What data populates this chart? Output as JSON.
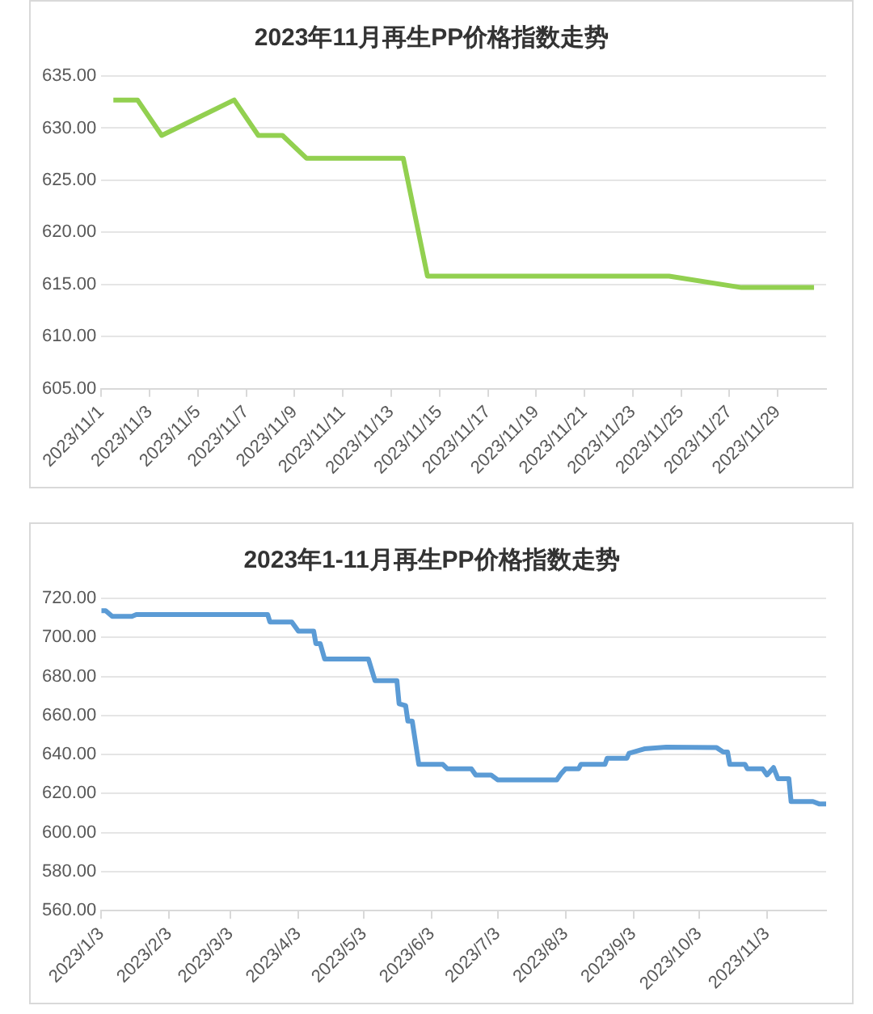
{
  "chart_data": [
    {
      "type": "line",
      "title": "2023年11月再生PP价格指数走势",
      "color": "#92d050",
      "grid": "y",
      "x": [
        "2023-11-01T12:00",
        "2023-11-02T12:00",
        "2023-11-03T12:00",
        "2023-11-06T12:00",
        "2023-11-07T12:00",
        "2023-11-08T12:00",
        "2023-11-09T12:00",
        "2023-11-10T12:00",
        "2023-11-13T12:00",
        "2023-11-14T12:00",
        "2023-11-15T12:00",
        "2023-11-16T12:00",
        "2023-11-17T12:00",
        "2023-11-20T12:00",
        "2023-11-21T12:00",
        "2023-11-22T12:00",
        "2023-11-23T12:00",
        "2023-11-24T12:00",
        "2023-11-27T12:00",
        "2023-11-28T12:00",
        "2023-11-29T12:00",
        "2023-11-30T12:00"
      ],
      "values": [
        632.7,
        632.7,
        629.3,
        632.7,
        629.3,
        629.3,
        627.1,
        627.1,
        627.1,
        615.8,
        615.8,
        615.8,
        615.8,
        615.8,
        615.8,
        615.8,
        615.8,
        615.8,
        614.7,
        614.7,
        614.7,
        614.7
      ],
      "xlim": [
        "2023-11-01",
        "2023-12-01"
      ],
      "xticks": [
        {
          "value": "2023-11-01",
          "label": "2023/11/1"
        },
        {
          "value": "2023-11-03",
          "label": "2023/11/3"
        },
        {
          "value": "2023-11-05",
          "label": "2023/11/5"
        },
        {
          "value": "2023-11-07",
          "label": "2023/11/7"
        },
        {
          "value": "2023-11-09",
          "label": "2023/11/9"
        },
        {
          "value": "2023-11-11",
          "label": "2023/11/11"
        },
        {
          "value": "2023-11-13",
          "label": "2023/11/13"
        },
        {
          "value": "2023-11-15",
          "label": "2023/11/15"
        },
        {
          "value": "2023-11-17",
          "label": "2023/11/17"
        },
        {
          "value": "2023-11-19",
          "label": "2023/11/19"
        },
        {
          "value": "2023-11-21",
          "label": "2023/11/21"
        },
        {
          "value": "2023-11-23",
          "label": "2023/11/23"
        },
        {
          "value": "2023-11-25",
          "label": "2023/11/25"
        },
        {
          "value": "2023-11-27",
          "label": "2023/11/27"
        },
        {
          "value": "2023-11-29",
          "label": "2023/11/29"
        }
      ],
      "ylim": [
        605,
        635
      ],
      "yticks": [
        {
          "value": 605,
          "label": "605.00"
        },
        {
          "value": 610,
          "label": "610.00"
        },
        {
          "value": 615,
          "label": "615.00"
        },
        {
          "value": 620,
          "label": "620.00"
        },
        {
          "value": 625,
          "label": "625.00"
        },
        {
          "value": 630,
          "label": "630.00"
        },
        {
          "value": 635,
          "label": "635.00"
        }
      ]
    },
    {
      "type": "line",
      "title": "2023年1-11月再生PP价格指数走势",
      "color": "#5b9bd5",
      "grid": "y",
      "x": [
        "2023-01-03",
        "2023-01-05",
        "2023-01-08",
        "2023-01-17",
        "2023-01-19",
        "2023-03-20",
        "2023-03-21",
        "2023-03-31",
        "2023-04-03",
        "2023-04-10",
        "2023-04-11",
        "2023-04-13",
        "2023-04-15",
        "2023-05-05",
        "2023-05-08",
        "2023-05-18",
        "2023-05-19",
        "2023-05-22",
        "2023-05-23",
        "2023-05-25",
        "2023-05-28",
        "2023-06-08",
        "2023-06-10",
        "2023-06-21",
        "2023-06-23",
        "2023-06-30",
        "2023-07-03",
        "2023-07-30",
        "2023-08-01",
        "2023-08-03",
        "2023-08-09",
        "2023-08-10",
        "2023-08-21",
        "2023-08-22",
        "2023-08-31",
        "2023-09-01",
        "2023-09-08",
        "2023-09-18",
        "2023-10-11",
        "2023-10-14",
        "2023-10-16",
        "2023-10-17",
        "2023-10-24",
        "2023-10-25",
        "2023-11-01",
        "2023-11-03",
        "2023-11-06",
        "2023-11-08",
        "2023-11-13",
        "2023-11-14",
        "2023-11-24",
        "2023-11-27",
        "2023-11-30"
      ],
      "values": [
        713.7,
        713.7,
        710.8,
        710.8,
        711.7,
        711.7,
        707.9,
        707.9,
        703.2,
        703.2,
        696.8,
        696.8,
        688.9,
        688.9,
        677.8,
        677.8,
        666,
        665,
        657.1,
        657.1,
        634.9,
        634.9,
        632.7,
        632.7,
        629.5,
        629.5,
        627,
        627,
        630.2,
        632.7,
        632.7,
        634.9,
        634.9,
        638.1,
        638.1,
        640.6,
        642.9,
        643.8,
        643.5,
        641.3,
        641.3,
        634.9,
        634.9,
        632.7,
        632.7,
        629.5,
        633.3,
        627.6,
        627.6,
        615.9,
        615.9,
        614.6,
        614.6
      ],
      "xlim": [
        "2023-01-03",
        "2023-11-30"
      ],
      "xticks": [
        {
          "value": "2023-01-03",
          "label": "2023/1/3"
        },
        {
          "value": "2023-02-03",
          "label": "2023/2/3"
        },
        {
          "value": "2023-03-03",
          "label": "2023/3/3"
        },
        {
          "value": "2023-04-03",
          "label": "2023/4/3"
        },
        {
          "value": "2023-05-03",
          "label": "2023/5/3"
        },
        {
          "value": "2023-06-03",
          "label": "2023/6/3"
        },
        {
          "value": "2023-07-03",
          "label": "2023/7/3"
        },
        {
          "value": "2023-08-03",
          "label": "2023/8/3"
        },
        {
          "value": "2023-09-03",
          "label": "2023/9/3"
        },
        {
          "value": "2023-10-03",
          "label": "2023/10/3"
        },
        {
          "value": "2023-11-03",
          "label": "2023/11/3"
        }
      ],
      "ylim": [
        560,
        720
      ],
      "yticks": [
        {
          "value": 560,
          "label": "560.00"
        },
        {
          "value": 580,
          "label": "580.00"
        },
        {
          "value": 600,
          "label": "600.00"
        },
        {
          "value": 620,
          "label": "620.00"
        },
        {
          "value": 640,
          "label": "640.00"
        },
        {
          "value": 660,
          "label": "660.00"
        },
        {
          "value": 680,
          "label": "680.00"
        },
        {
          "value": 700,
          "label": "700.00"
        },
        {
          "value": 720,
          "label": "720.00"
        }
      ]
    }
  ]
}
